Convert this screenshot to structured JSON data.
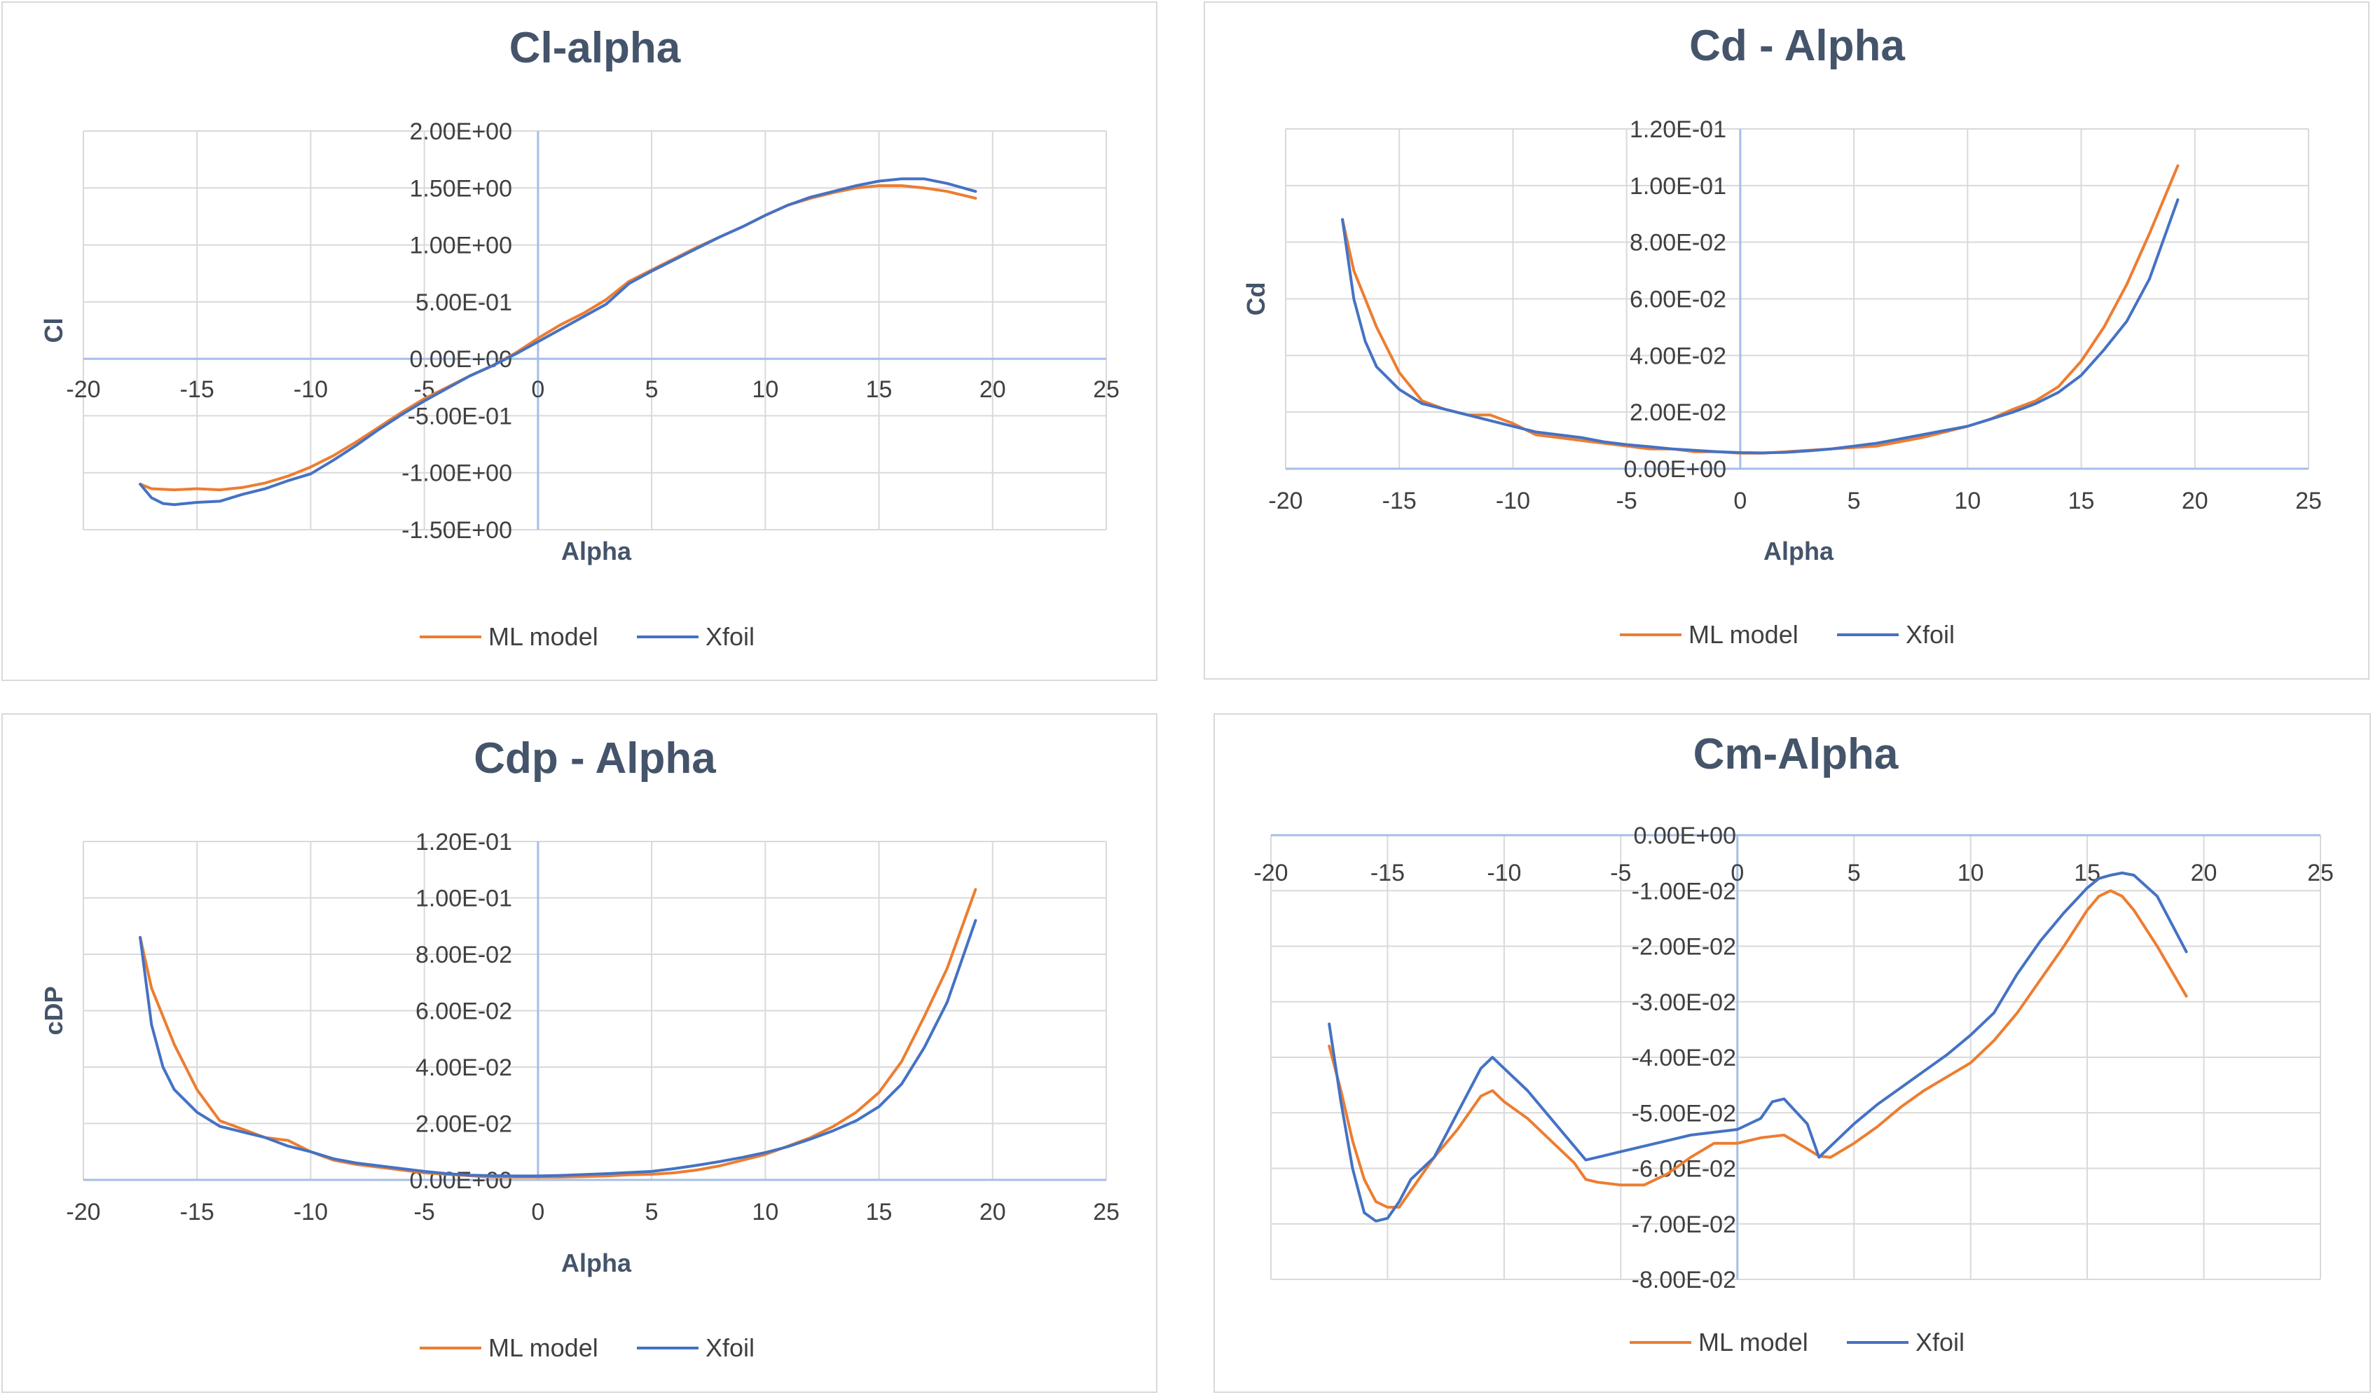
{
  "colors": {
    "ml": "#ed7d31",
    "xfoil": "#4472c4",
    "grid": "#d9d9d9",
    "axis": "#a6bde8",
    "text": "#404040",
    "title": "#44546a"
  },
  "chart_data": [
    {
      "id": "cl",
      "type": "line",
      "title": "Cl-alpha",
      "xlabel": "Alpha",
      "ylabel": "Cl",
      "xlim": [
        -20,
        25
      ],
      "ylim": [
        -1.5,
        2.0
      ],
      "xticks": [
        -20,
        -15,
        -10,
        -5,
        0,
        5,
        10,
        15,
        20,
        25
      ],
      "x_tick_labels": [
        "-20",
        "-15",
        "-10",
        "-5",
        "0",
        "5",
        "10",
        "15",
        "20",
        "25"
      ],
      "yticks": [
        -1.5,
        -1.0,
        -0.5,
        0.0,
        0.5,
        1.0,
        1.5,
        2.0
      ],
      "y_tick_labels": [
        "-1.50E+00",
        "-1.00E+00",
        "-5.00E-01",
        "0.00E+00",
        "5.00E-01",
        "1.00E+00",
        "1.50E+00",
        "2.00E+00"
      ],
      "grid": true,
      "legend": "bottom",
      "series": [
        {
          "name": "ML model",
          "color": "#ed7d31",
          "x": [
            -17.5,
            -17,
            -16,
            -15,
            -14,
            -13,
            -12,
            -11,
            -10,
            -9,
            -8,
            -7,
            -6,
            -5,
            -4,
            -3,
            -2,
            -1,
            0,
            1,
            2,
            3,
            4,
            5,
            6,
            7,
            8,
            9,
            10,
            11,
            12,
            13,
            14,
            15,
            16,
            17,
            18,
            19.25
          ],
          "y": [
            -1.1,
            -1.14,
            -1.15,
            -1.14,
            -1.15,
            -1.13,
            -1.09,
            -1.03,
            -0.95,
            -0.85,
            -0.73,
            -0.6,
            -0.47,
            -0.35,
            -0.25,
            -0.15,
            -0.06,
            0.05,
            0.18,
            0.3,
            0.4,
            0.52,
            0.68,
            0.78,
            0.88,
            0.98,
            1.07,
            1.16,
            1.26,
            1.35,
            1.41,
            1.46,
            1.5,
            1.52,
            1.52,
            1.5,
            1.47,
            1.41
          ]
        },
        {
          "name": "Xfoil",
          "color": "#4472c4",
          "x": [
            -17.5,
            -17,
            -16.5,
            -16,
            -15,
            -14,
            -13,
            -12,
            -11,
            -10,
            -9,
            -8,
            -7,
            -6,
            -5,
            -4,
            -3,
            -2,
            -1,
            0,
            1,
            2,
            3,
            4,
            5,
            6,
            7,
            8,
            9,
            10,
            11,
            12,
            13,
            14,
            15,
            16,
            17,
            18,
            19.25
          ],
          "y": [
            -1.1,
            -1.22,
            -1.27,
            -1.28,
            -1.26,
            -1.25,
            -1.19,
            -1.14,
            -1.07,
            -1.01,
            -0.89,
            -0.76,
            -0.62,
            -0.49,
            -0.37,
            -0.26,
            -0.15,
            -0.06,
            0.04,
            0.15,
            0.26,
            0.37,
            0.48,
            0.66,
            0.77,
            0.87,
            0.97,
            1.07,
            1.16,
            1.26,
            1.35,
            1.42,
            1.47,
            1.52,
            1.56,
            1.58,
            1.58,
            1.54,
            1.47
          ]
        }
      ]
    },
    {
      "id": "cd",
      "type": "line",
      "title": "Cd - Alpha",
      "xlabel": "Alpha",
      "ylabel": "Cd",
      "xlim": [
        -20,
        25
      ],
      "ylim": [
        0,
        0.12
      ],
      "xticks": [
        -20,
        -15,
        -10,
        -5,
        0,
        5,
        10,
        15,
        20,
        25
      ],
      "x_tick_labels": [
        "-20",
        "-15",
        "-10",
        "-5",
        "0",
        "5",
        "10",
        "15",
        "20",
        "25"
      ],
      "yticks": [
        0,
        0.02,
        0.04,
        0.06,
        0.08,
        0.1,
        0.12
      ],
      "y_tick_labels": [
        "0.00E+00",
        "2.00E-02",
        "4.00E-02",
        "6.00E-02",
        "8.00E-02",
        "1.00E-01",
        "1.20E-01"
      ],
      "grid": true,
      "legend": "bottom",
      "series": [
        {
          "name": "ML model",
          "color": "#ed7d31",
          "x": [
            -17.5,
            -17,
            -16,
            -15,
            -14,
            -13,
            -12,
            -11,
            -10,
            -9,
            -8,
            -7,
            -6,
            -5,
            -4,
            -3,
            -2,
            -1,
            0,
            1,
            2,
            3,
            4,
            5,
            6,
            7,
            8,
            9,
            10,
            11,
            12,
            13,
            14,
            15,
            16,
            17,
            18,
            19.25
          ],
          "y": [
            0.088,
            0.07,
            0.05,
            0.034,
            0.024,
            0.021,
            0.019,
            0.019,
            0.016,
            0.012,
            0.011,
            0.01,
            0.009,
            0.008,
            0.007,
            0.007,
            0.006,
            0.006,
            0.0055,
            0.0055,
            0.006,
            0.0065,
            0.007,
            0.0075,
            0.008,
            0.0095,
            0.011,
            0.013,
            0.015,
            0.0175,
            0.021,
            0.024,
            0.029,
            0.038,
            0.05,
            0.065,
            0.083,
            0.107
          ]
        },
        {
          "name": "Xfoil",
          "color": "#4472c4",
          "x": [
            -17.5,
            -17,
            -16.5,
            -16,
            -15,
            -14,
            -13,
            -12,
            -11,
            -10,
            -9,
            -8,
            -7,
            -6,
            -5,
            -4,
            -3,
            -2,
            -1,
            0,
            1,
            2,
            3,
            4,
            5,
            6,
            7,
            8,
            9,
            10,
            11,
            12,
            13,
            14,
            15,
            16,
            17,
            18,
            19.25
          ],
          "y": [
            0.088,
            0.06,
            0.045,
            0.036,
            0.028,
            0.023,
            0.021,
            0.019,
            0.017,
            0.015,
            0.013,
            0.012,
            0.011,
            0.0095,
            0.0085,
            0.0078,
            0.007,
            0.0065,
            0.006,
            0.0057,
            0.0056,
            0.0058,
            0.0063,
            0.007,
            0.008,
            0.009,
            0.0105,
            0.012,
            0.0135,
            0.015,
            0.0175,
            0.02,
            0.023,
            0.027,
            0.033,
            0.042,
            0.052,
            0.067,
            0.095
          ]
        }
      ]
    },
    {
      "id": "cdp",
      "type": "line",
      "title": "Cdp - Alpha",
      "xlabel": "Alpha",
      "ylabel": "cDP",
      "xlim": [
        -20,
        25
      ],
      "ylim": [
        0,
        0.12
      ],
      "xticks": [
        -20,
        -15,
        -10,
        -5,
        0,
        5,
        10,
        15,
        20,
        25
      ],
      "x_tick_labels": [
        "-20",
        "-15",
        "-10",
        "-5",
        "0",
        "5",
        "10",
        "15",
        "20",
        "25"
      ],
      "yticks": [
        0,
        0.02,
        0.04,
        0.06,
        0.08,
        0.1,
        0.12
      ],
      "y_tick_labels": [
        "0.00E+00",
        "2.00E-02",
        "4.00E-02",
        "6.00E-02",
        "8.00E-02",
        "1.00E-01",
        "1.20E-01"
      ],
      "grid": true,
      "legend": "bottom",
      "series": [
        {
          "name": "ML model",
          "color": "#ed7d31",
          "x": [
            -17.5,
            -17,
            -16,
            -15,
            -14,
            -13,
            -12,
            -11,
            -10,
            -9,
            -8,
            -7,
            -6,
            -5,
            -4,
            -3,
            -2,
            -1,
            0,
            1,
            2,
            3,
            4,
            5,
            6,
            7,
            8,
            9,
            10,
            11,
            12,
            13,
            14,
            15,
            16,
            17,
            18,
            19.25
          ],
          "y": [
            0.086,
            0.068,
            0.048,
            0.032,
            0.021,
            0.018,
            0.015,
            0.014,
            0.01,
            0.007,
            0.0055,
            0.0045,
            0.0035,
            0.0025,
            0.002,
            0.0015,
            0.001,
            0.001,
            0.001,
            0.001,
            0.0012,
            0.0014,
            0.0018,
            0.002,
            0.0025,
            0.0035,
            0.005,
            0.007,
            0.009,
            0.012,
            0.015,
            0.019,
            0.024,
            0.031,
            0.042,
            0.058,
            0.075,
            0.103
          ]
        },
        {
          "name": "Xfoil",
          "color": "#4472c4",
          "x": [
            -17.5,
            -17,
            -16.5,
            -16,
            -15,
            -14,
            -13,
            -12,
            -11,
            -10,
            -9,
            -8,
            -7,
            -6,
            -5,
            -4,
            -3,
            -2,
            -1,
            0,
            1,
            2,
            3,
            4,
            5,
            6,
            7,
            8,
            9,
            10,
            11,
            12,
            13,
            14,
            15,
            16,
            17,
            18,
            19.25
          ],
          "y": [
            0.086,
            0.055,
            0.04,
            0.032,
            0.024,
            0.019,
            0.017,
            0.015,
            0.012,
            0.01,
            0.0075,
            0.006,
            0.005,
            0.004,
            0.003,
            0.0022,
            0.0017,
            0.0015,
            0.0014,
            0.0014,
            0.0016,
            0.0019,
            0.0022,
            0.0026,
            0.003,
            0.004,
            0.0052,
            0.0065,
            0.008,
            0.0097,
            0.0118,
            0.0145,
            0.0175,
            0.021,
            0.026,
            0.034,
            0.047,
            0.063,
            0.092
          ]
        }
      ]
    },
    {
      "id": "cm",
      "type": "line",
      "title": "Cm-Alpha",
      "xlabel": "",
      "ylabel": "",
      "xlim": [
        -20,
        25
      ],
      "ylim": [
        -0.08,
        0
      ],
      "xticks": [
        -20,
        -15,
        -10,
        -5,
        0,
        5,
        10,
        15,
        20,
        25
      ],
      "x_tick_labels": [
        "-20",
        "-15",
        "-10",
        "-5",
        "0",
        "5",
        "10",
        "15",
        "20",
        "25"
      ],
      "yticks": [
        -0.08,
        -0.07,
        -0.06,
        -0.05,
        -0.04,
        -0.03,
        -0.02,
        -0.01,
        0
      ],
      "y_tick_labels": [
        "-8.00E-02",
        "-7.00E-02",
        "-6.00E-02",
        "-5.00E-02",
        "-4.00E-02",
        "-3.00E-02",
        "-2.00E-02",
        "-1.00E-02",
        "0.00E+00"
      ],
      "grid": true,
      "legend": "bottom",
      "series": [
        {
          "name": "ML model",
          "color": "#ed7d31",
          "x": [
            -17.5,
            -17,
            -16.5,
            -16,
            -15.5,
            -15,
            -14.5,
            -14,
            -13,
            -12,
            -11,
            -10.5,
            -10,
            -9,
            -8,
            -7,
            -6.5,
            -6,
            -5,
            -4,
            -3,
            -2,
            -1,
            0,
            1,
            2,
            3,
            3.5,
            4,
            5,
            6,
            7,
            8,
            9,
            10,
            11,
            12,
            13,
            14,
            15,
            15.5,
            16,
            16.5,
            17,
            18,
            19.25
          ],
          "y": [
            -0.038,
            -0.046,
            -0.055,
            -0.062,
            -0.066,
            -0.067,
            -0.067,
            -0.064,
            -0.058,
            -0.053,
            -0.047,
            -0.046,
            -0.048,
            -0.051,
            -0.055,
            -0.059,
            -0.062,
            -0.0625,
            -0.063,
            -0.063,
            -0.061,
            -0.058,
            -0.0555,
            -0.0555,
            -0.0545,
            -0.054,
            -0.0565,
            -0.0578,
            -0.058,
            -0.0555,
            -0.0525,
            -0.049,
            -0.046,
            -0.0435,
            -0.041,
            -0.037,
            -0.032,
            -0.026,
            -0.02,
            -0.0135,
            -0.011,
            -0.01,
            -0.011,
            -0.0135,
            -0.02,
            -0.029
          ]
        },
        {
          "name": "Xfoil",
          "color": "#4472c4",
          "x": [
            -17.5,
            -17,
            -16.5,
            -16,
            -15.5,
            -15,
            -14.5,
            -14,
            -13,
            -12,
            -11,
            -10.5,
            -10,
            -9,
            -8,
            -7,
            -6.5,
            -6,
            -5,
            -4,
            -3,
            -2,
            -1,
            0,
            1,
            1.5,
            2,
            3,
            3.5,
            4,
            5,
            6,
            7,
            8,
            9,
            10,
            11,
            12,
            13,
            14,
            15,
            15.5,
            16,
            16.5,
            17,
            18,
            19.25
          ],
          "y": [
            -0.034,
            -0.048,
            -0.06,
            -0.068,
            -0.0695,
            -0.069,
            -0.066,
            -0.062,
            -0.058,
            -0.05,
            -0.042,
            -0.04,
            -0.042,
            -0.046,
            -0.051,
            -0.056,
            -0.0585,
            -0.058,
            -0.057,
            -0.056,
            -0.055,
            -0.054,
            -0.0535,
            -0.053,
            -0.051,
            -0.048,
            -0.0475,
            -0.052,
            -0.058,
            -0.056,
            -0.052,
            -0.0485,
            -0.0455,
            -0.0425,
            -0.0395,
            -0.036,
            -0.032,
            -0.025,
            -0.019,
            -0.014,
            -0.0095,
            -0.0078,
            -0.0072,
            -0.0068,
            -0.0072,
            -0.011,
            -0.021
          ]
        }
      ]
    }
  ]
}
